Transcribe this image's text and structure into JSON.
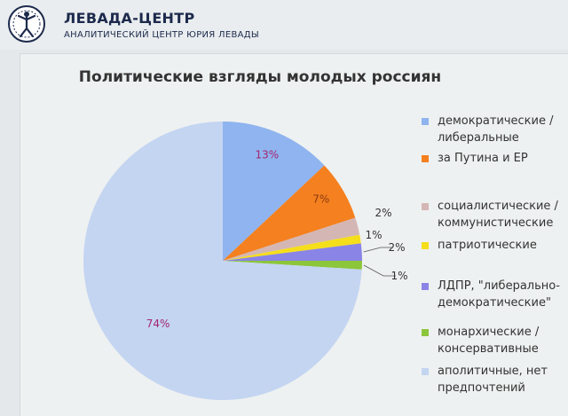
{
  "header": {
    "title": "ЛЕВАДА-ЦЕНТР",
    "subtitle": "АНАЛИТИЧЕСКИЙ ЦЕНТР ЮРИЯ ЛЕВАДЫ"
  },
  "colors": {
    "brand": "#1d2a4c",
    "slide_background": "#eef1f1"
  },
  "chart_data": {
    "type": "pie",
    "title": "Политические взгляды молодых россиян",
    "start_angle": "12 o'clock",
    "direction": "clockwise",
    "legend_position": "right",
    "slices": [
      {
        "label": "демократические / либеральные",
        "value": 13,
        "value_label": "13%",
        "color": "#8fb4ef",
        "label_color": "#a32870"
      },
      {
        "label": "за Путина и ЕР",
        "value": 7,
        "value_label": "7%",
        "color": "#f5801f",
        "label_color": "#8a3a14"
      },
      {
        "label": "социалистические / коммунистические",
        "value": 2,
        "value_label": "2%",
        "color": "#d4b7b4",
        "label_color": "#333333"
      },
      {
        "label": "патриотические",
        "value": 1,
        "value_label": "1%",
        "color": "#f5de1a",
        "label_color": "#333333"
      },
      {
        "label": "ЛДПР, \"либерально-демократические\"",
        "value": 2,
        "value_label": "2%",
        "color": "#8a84e6",
        "label_color": "#333333"
      },
      {
        "label": "монархические / консервативные",
        "value": 1,
        "value_label": "1%",
        "color": "#8cc63a",
        "label_color": "#333333"
      },
      {
        "label": "аполитичные, нет предпочтений",
        "value": 74,
        "value_label": "74%",
        "color": "#c4d5f2",
        "label_color": "#a32870"
      }
    ]
  }
}
